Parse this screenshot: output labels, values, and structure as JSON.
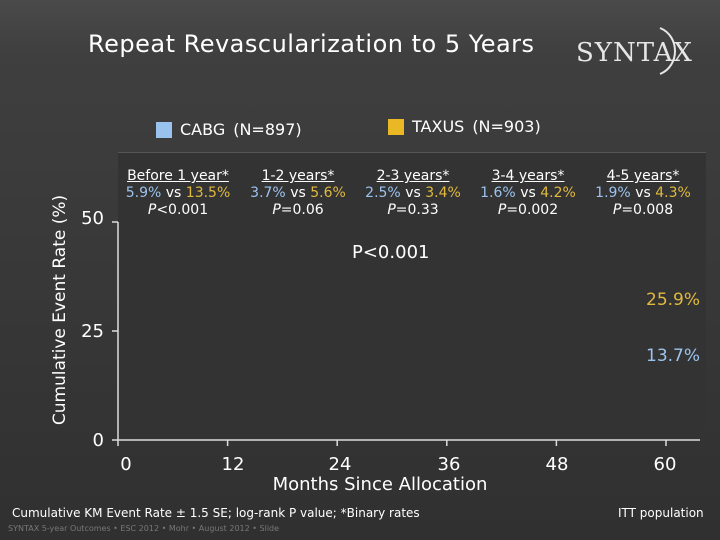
{
  "slide": {
    "title": "Repeat Revascularization to 5 Years",
    "logo_text": "SYNTAX",
    "footnote": "Cumulative KM Event Rate ± 1.5 SE; log-rank P value; *Binary rates",
    "credits": "SYNTAX 5-year Outcomes  •  ESC 2012  •  Mohr  •  August 2012  •  Slide",
    "population": "ITT population"
  },
  "chart_data": {
    "type": "line",
    "xlabel": "Months Since Allocation",
    "ylabel": "Cumulative Event Rate (%)",
    "x_ticks": [
      "0",
      "12",
      "24",
      "36",
      "48",
      "60"
    ],
    "y_ticks": [
      "0",
      "25",
      "50"
    ],
    "xlim": [
      0,
      60
    ],
    "ylim": [
      0,
      50
    ],
    "legend": [
      {
        "name": "CABG",
        "n": "(N=897)",
        "color": "#99c2ef"
      },
      {
        "name": "TAXUS",
        "n": "(N=903)",
        "color": "#e9b824"
      }
    ],
    "p_overall": "P<0.001",
    "series": [
      {
        "name": "CABG",
        "color": "#9cc3ee",
        "end_label": "13.7%",
        "end_value": 13.7
      },
      {
        "name": "TAXUS",
        "color": "#e0b93e",
        "end_label": "25.9%",
        "end_value": 25.9
      }
    ],
    "periods": [
      {
        "label": "Before 1 year*",
        "cabg": "5.9%",
        "vs": "vs",
        "taxus": "13.5%",
        "p_prefix": "P",
        "p_value": "<0.001"
      },
      {
        "label": "1-2 years*",
        "cabg": "3.7%",
        "vs": "vs",
        "taxus": "5.6%",
        "p_prefix": "P",
        "p_value": "=0.06"
      },
      {
        "label": "2-3 years*",
        "cabg": "2.5%",
        "vs": "vs",
        "taxus": "3.4%",
        "p_prefix": "P",
        "p_value": "=0.33"
      },
      {
        "label": "3-4 years*",
        "cabg": "1.6%",
        "vs": "vs",
        "taxus": "4.2%",
        "p_prefix": "P",
        "p_value": "=0.002"
      },
      {
        "label": "4-5 years*",
        "cabg": "1.9%",
        "vs": "vs",
        "taxus": "4.3%",
        "p_prefix": "P",
        "p_value": "=0.008"
      }
    ]
  }
}
